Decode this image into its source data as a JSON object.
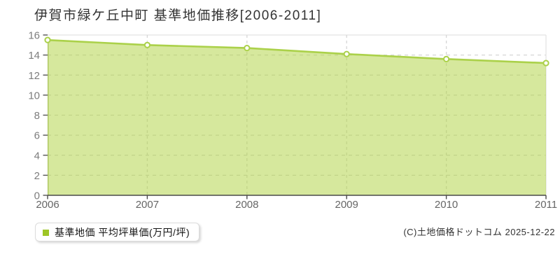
{
  "title": "伊賀市緑ケ丘中町 基準地価推移[2006-2011]",
  "legend": {
    "label": "基準地価 平均坪単価(万円/坪)",
    "marker_color": "#9ec626"
  },
  "footer": {
    "copyright": "(C)土地価格ドットコム 2025-12-22"
  },
  "chart_data": {
    "type": "area",
    "title": "伊賀市緑ケ丘中町 基準地価推移[2006-2011]",
    "x": [
      2006,
      2007,
      2008,
      2009,
      2010,
      2011
    ],
    "series": [
      {
        "name": "基準地価 平均坪単価(万円/坪)",
        "values": [
          15.5,
          15.0,
          14.7,
          14.1,
          13.6,
          13.2
        ]
      }
    ],
    "xlabel": "",
    "ylabel": "",
    "ylim": [
      0,
      16
    ],
    "ytick_step": 2,
    "grid": true,
    "grid_style": "dashed",
    "legend_position": "bottom-left",
    "colors": {
      "line": "#abd14a",
      "fill": "rgba(176,210,68,0.52)",
      "marker_fill": "#ffffff",
      "legend_marker": "#9ec626"
    }
  }
}
